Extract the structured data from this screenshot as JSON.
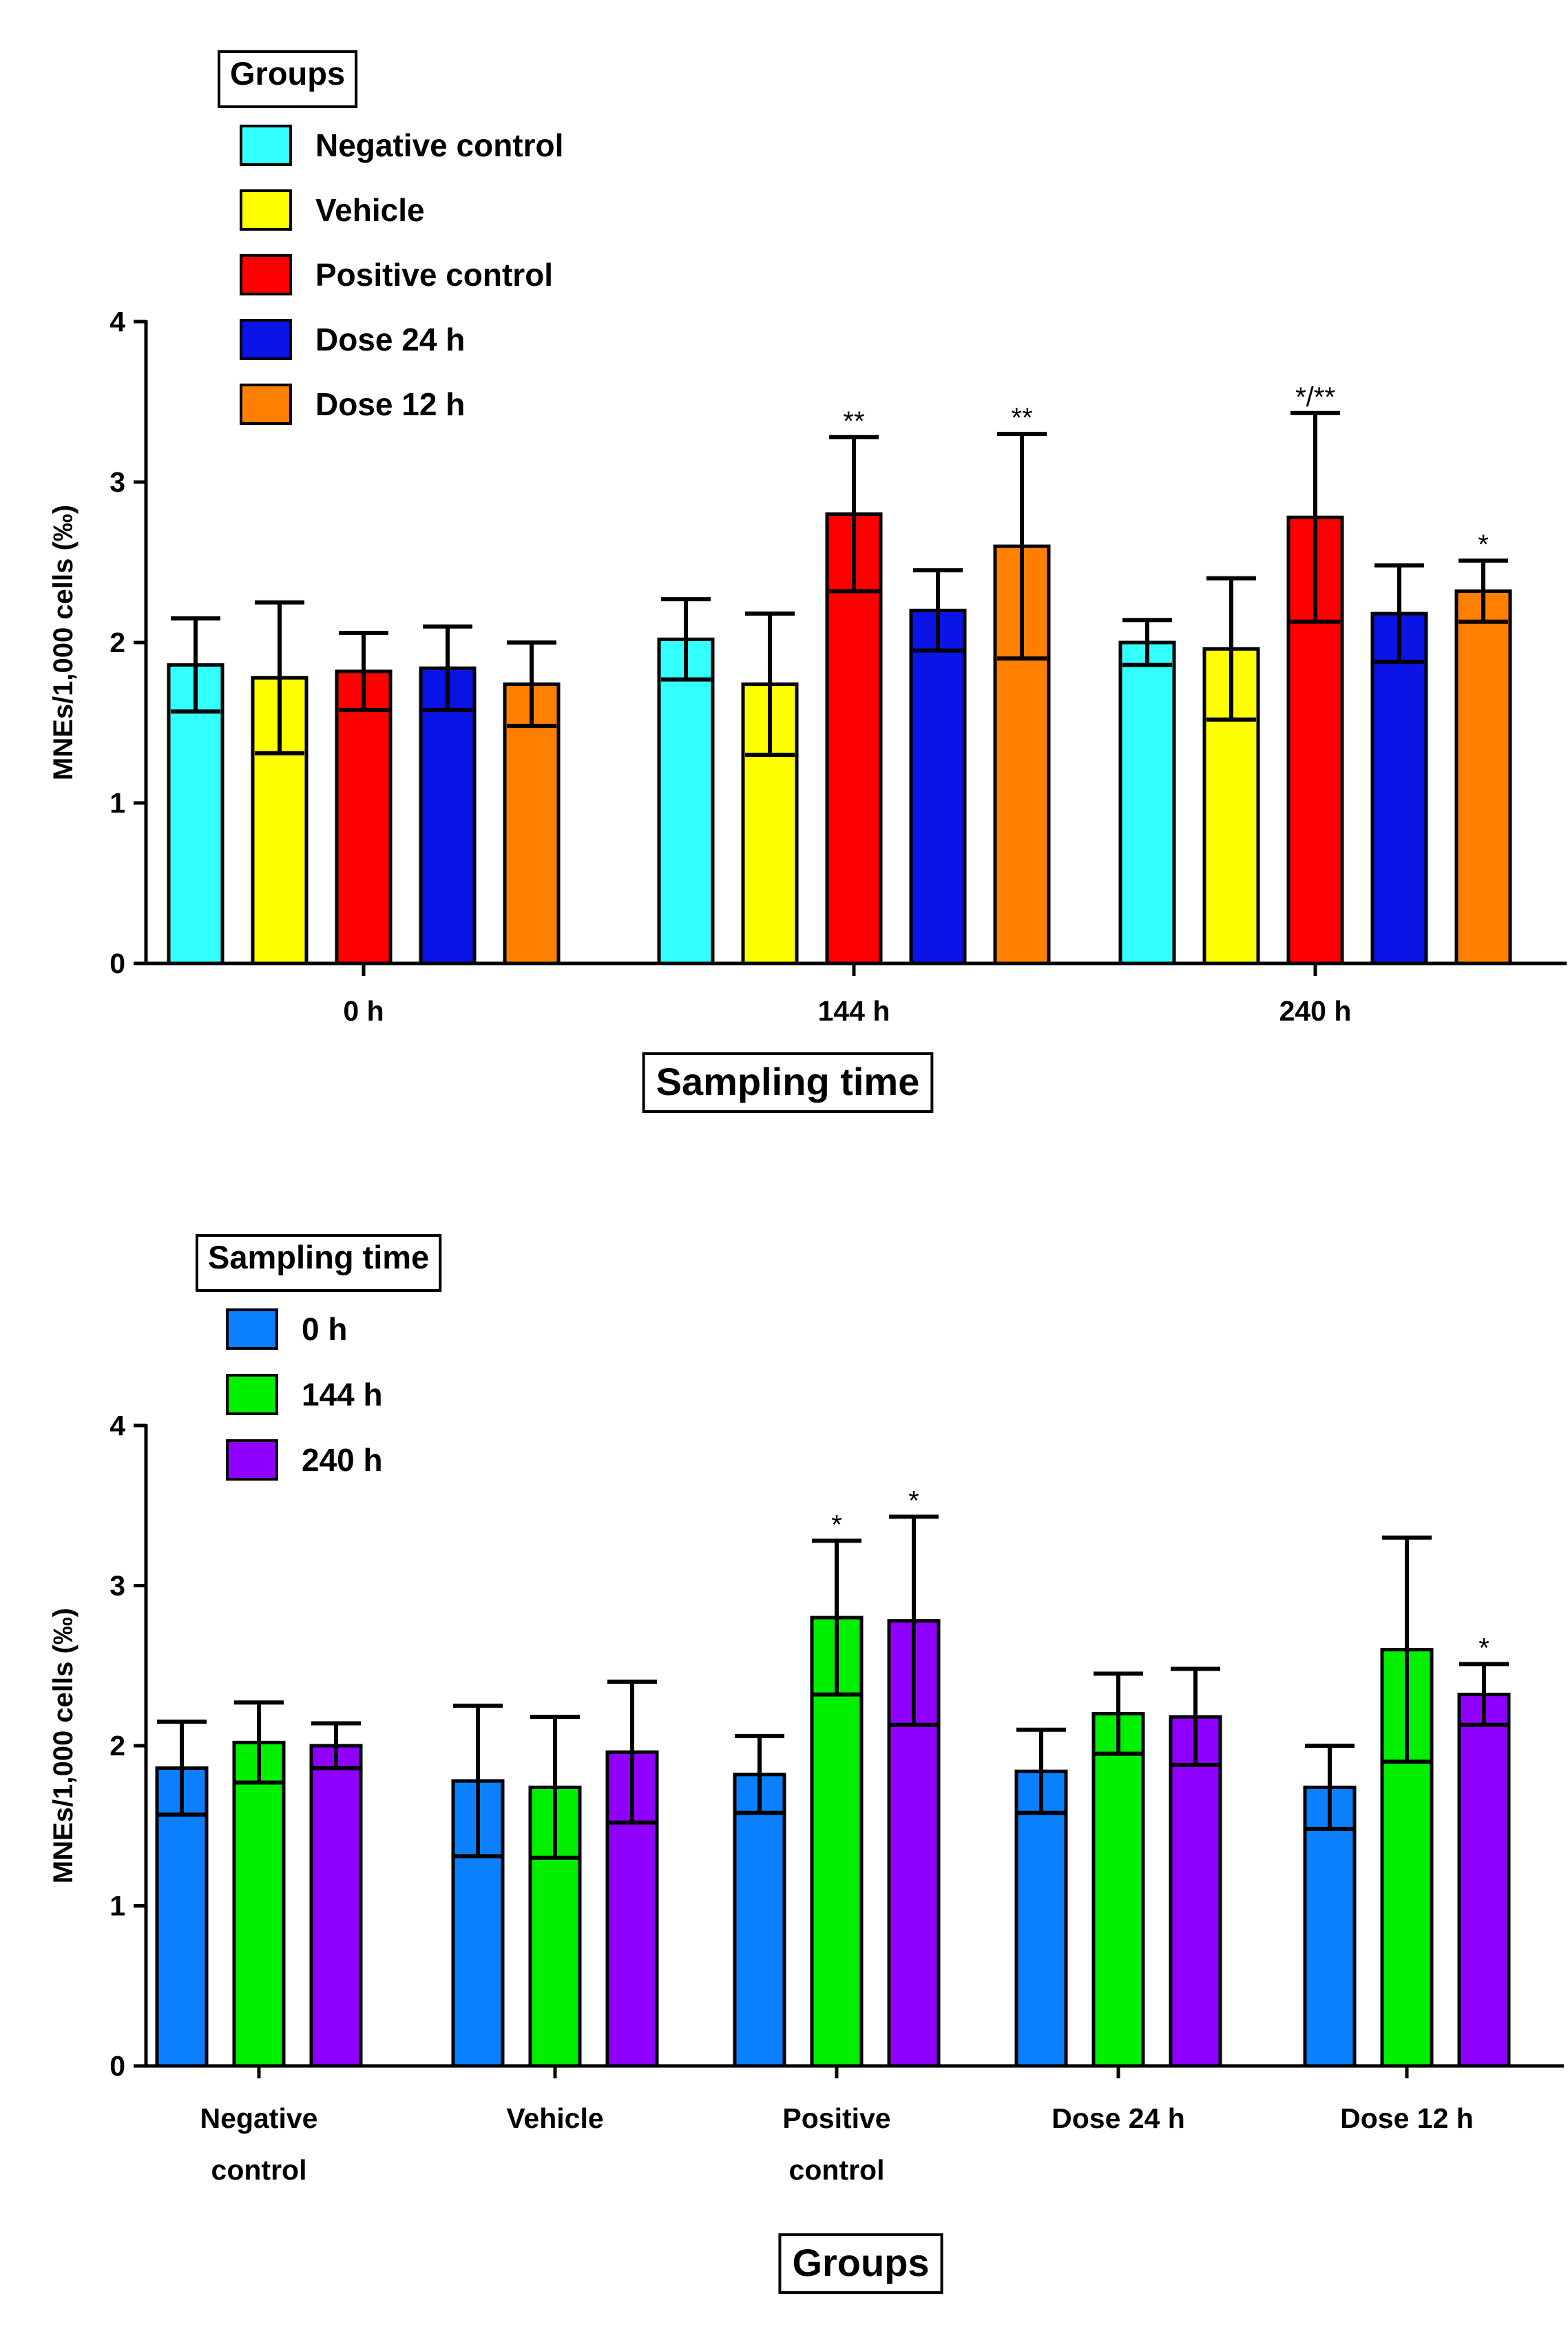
{
  "chart_data": [
    {
      "type": "bar",
      "title": "",
      "xlabel": "Sampling time",
      "ylabel": "MNEs/1,000 cells (‰)",
      "ylim": [
        0,
        4
      ],
      "yticks": [
        "0",
        "1",
        "2",
        "3",
        "4"
      ],
      "categories": [
        "0 h",
        "144 h",
        "240 h"
      ],
      "legend": {
        "title": "Groups",
        "placement": "top-left"
      },
      "series": [
        {
          "name": "Negative control",
          "color": "#33FFFF",
          "values": [
            1.86,
            2.02,
            2.0
          ],
          "errors": [
            0.29,
            0.25,
            0.14
          ],
          "annotations": [
            "",
            "",
            ""
          ]
        },
        {
          "name": "Vehicle",
          "color": "#FFFF00",
          "values": [
            1.78,
            1.74,
            1.96
          ],
          "errors": [
            0.47,
            0.44,
            0.44
          ],
          "annotations": [
            "",
            "",
            ""
          ]
        },
        {
          "name": "Positive control",
          "color": "#FF0000",
          "values": [
            1.82,
            2.8,
            2.78
          ],
          "errors": [
            0.24,
            0.48,
            0.65
          ],
          "annotations": [
            "",
            "**",
            "*/**"
          ]
        },
        {
          "name": "Dose 24 h",
          "color": "#0A14E6",
          "values": [
            1.84,
            2.2,
            2.18
          ],
          "errors": [
            0.26,
            0.25,
            0.3
          ],
          "annotations": [
            "",
            "",
            ""
          ]
        },
        {
          "name": "Dose 12 h",
          "color": "#FF8000",
          "values": [
            1.74,
            2.6,
            2.32
          ],
          "errors": [
            0.26,
            0.7,
            0.19
          ],
          "annotations": [
            "",
            "**",
            "*"
          ]
        }
      ]
    },
    {
      "type": "bar",
      "title": "",
      "xlabel": "Groups",
      "ylabel": "MNEs/1,000 cells (‰)",
      "ylim": [
        0,
        4
      ],
      "yticks": [
        "0",
        "1",
        "2",
        "3",
        "4"
      ],
      "categories": [
        [
          "Negative",
          "control"
        ],
        [
          "Vehicle"
        ],
        [
          "Positive",
          "control"
        ],
        [
          "Dose 24 h"
        ],
        [
          "Dose 12 h"
        ]
      ],
      "legend": {
        "title": "Sampling time",
        "placement": "top-left"
      },
      "series": [
        {
          "name": "0 h",
          "color": "#0A80FF",
          "values": [
            1.86,
            1.78,
            1.82,
            1.84,
            1.74
          ],
          "errors": [
            0.29,
            0.47,
            0.24,
            0.26,
            0.26
          ],
          "annotations": [
            "",
            "",
            "",
            "",
            ""
          ]
        },
        {
          "name": "144 h",
          "color": "#00F000",
          "values": [
            2.02,
            1.74,
            2.8,
            2.2,
            2.6
          ],
          "errors": [
            0.25,
            0.44,
            0.48,
            0.25,
            0.7
          ],
          "annotations": [
            "",
            "",
            "*",
            "",
            ""
          ]
        },
        {
          "name": "240 h",
          "color": "#9000FF",
          "values": [
            2.0,
            1.96,
            2.78,
            2.18,
            2.32
          ],
          "errors": [
            0.14,
            0.44,
            0.65,
            0.3,
            0.19
          ],
          "annotations": [
            "",
            "",
            "*",
            "",
            "*"
          ]
        }
      ]
    }
  ]
}
